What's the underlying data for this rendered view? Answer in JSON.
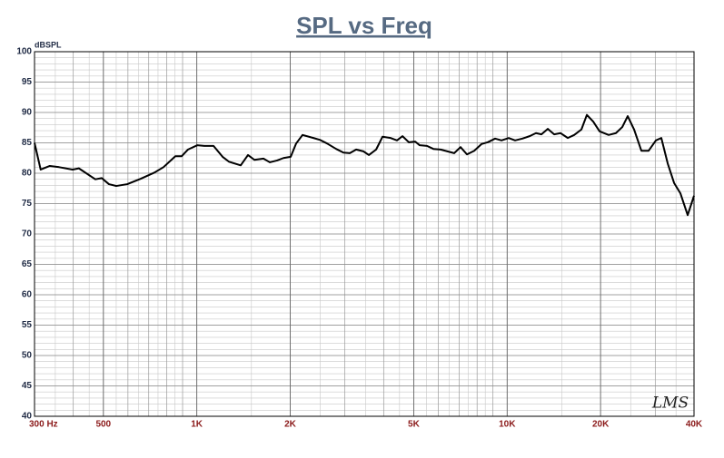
{
  "chart_data": {
    "type": "line",
    "title": "SPL vs Freq",
    "y_axis_label": "dBSPL",
    "watermark": "LMS",
    "xscale": "log",
    "xlim": [
      300,
      40000
    ],
    "xticks": [
      {
        "value": 300,
        "label": "300 Hz"
      },
      500,
      {
        "value": 1000,
        "label": "1K"
      },
      {
        "value": 2000,
        "label": "2K"
      },
      {
        "value": 5000,
        "label": "5K"
      },
      {
        "value": 10000,
        "label": "10K"
      },
      {
        "value": 20000,
        "label": "20K"
      },
      {
        "value": 40000,
        "label": "40K"
      }
    ],
    "ylim": [
      40,
      100
    ],
    "yticks": [
      40,
      45,
      50,
      55,
      60,
      65,
      70,
      75,
      80,
      85,
      90,
      95,
      100
    ],
    "grid": true,
    "x_minor_grid": true,
    "y_minor_grid_step": 1,
    "series": [
      {
        "color": "#000000",
        "x": [
          300,
          314,
          336,
          360,
          398,
          417,
          471,
          494,
          521,
          550,
          597,
          660,
          730,
          781,
          853,
          894,
          937,
          1003,
          1058,
          1132,
          1211,
          1269,
          1385,
          1462,
          1533,
          1640,
          1719,
          1814,
          1902,
          2007,
          2090,
          2191,
          2375,
          2490,
          2628,
          2811,
          2967,
          3111,
          3262,
          3442,
          3585,
          3783,
          3966,
          4212,
          4416,
          4599,
          4821,
          5055,
          5226,
          5517,
          5784,
          6102,
          6750,
          7077,
          7422,
          7833,
          8265,
          8664,
          9144,
          9588,
          10116,
          10605,
          11196,
          11814,
          12384,
          12894,
          13518,
          14172,
          14862,
          15681,
          16443,
          17349,
          18063,
          18933,
          19851,
          21234,
          22410,
          23493,
          24459,
          25641,
          27066,
          28563,
          30150,
          31380,
          32910,
          34500,
          36150,
          38160,
          40000
        ],
        "values": [
          85,
          80.6,
          81.2,
          81,
          80.6,
          80.8,
          79,
          79.2,
          78.2,
          77.9,
          78.2,
          79.1,
          80.1,
          81,
          82.8,
          82.8,
          83.9,
          84.6,
          84.5,
          84.5,
          82.7,
          81.9,
          81.3,
          83,
          82.2,
          82.4,
          81.8,
          82.1,
          82.5,
          82.7,
          84.9,
          86.3,
          85.8,
          85.5,
          84.9,
          84,
          83.4,
          83.3,
          83.9,
          83.6,
          83,
          83.9,
          86,
          85.8,
          85.4,
          86.1,
          85.1,
          85.2,
          84.6,
          84.5,
          84,
          83.9,
          83.3,
          84.3,
          83.1,
          83.7,
          84.8,
          85.1,
          85.7,
          85.4,
          85.8,
          85.4,
          85.7,
          86.1,
          86.6,
          86.4,
          87.3,
          86.4,
          86.6,
          85.8,
          86.3,
          87.2,
          89.6,
          88.5,
          86.9,
          86.3,
          86.6,
          87.6,
          89.4,
          87.2,
          83.7,
          83.7,
          85.4,
          85.8,
          81.6,
          78.4,
          76.7,
          73.1,
          76.3
        ]
      }
    ]
  }
}
